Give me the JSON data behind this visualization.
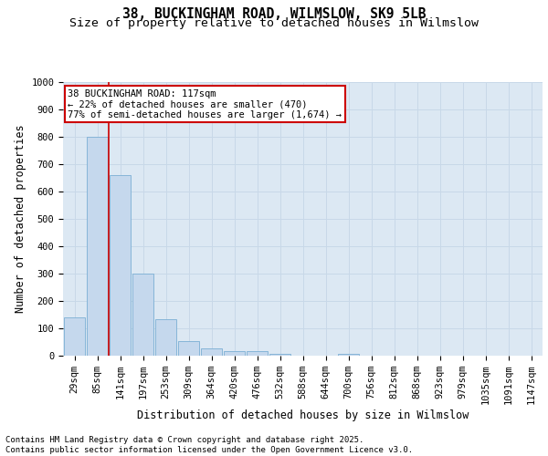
{
  "title1": "38, BUCKINGHAM ROAD, WILMSLOW, SK9 5LB",
  "title2": "Size of property relative to detached houses in Wilmslow",
  "xlabel": "Distribution of detached houses by size in Wilmslow",
  "ylabel": "Number of detached properties",
  "categories": [
    "29sqm",
    "85sqm",
    "141sqm",
    "197sqm",
    "253sqm",
    "309sqm",
    "364sqm",
    "420sqm",
    "476sqm",
    "532sqm",
    "588sqm",
    "644sqm",
    "700sqm",
    "756sqm",
    "812sqm",
    "868sqm",
    "923sqm",
    "979sqm",
    "1035sqm",
    "1091sqm",
    "1147sqm"
  ],
  "bar_heights": [
    140,
    800,
    660,
    300,
    135,
    53,
    27,
    18,
    18,
    8,
    0,
    0,
    8,
    0,
    0,
    0,
    0,
    0,
    0,
    0,
    0
  ],
  "bar_color": "#c5d8ed",
  "bar_edge_color": "#7bafd4",
  "grid_color": "#c8d8e8",
  "background_color": "#dce8f3",
  "annotation_box_text": "38 BUCKINGHAM ROAD: 117sqm\n← 22% of detached houses are smaller (470)\n77% of semi-detached houses are larger (1,674) →",
  "annotation_box_color": "#ffffff",
  "annotation_box_edge_color": "#cc0000",
  "vline_color": "#cc0000",
  "vline_x_index": 1.5,
  "ylim": [
    0,
    1000
  ],
  "yticks": [
    0,
    100,
    200,
    300,
    400,
    500,
    600,
    700,
    800,
    900,
    1000
  ],
  "footer_text": "Contains HM Land Registry data © Crown copyright and database right 2025.\nContains public sector information licensed under the Open Government Licence v3.0.",
  "title_fontsize": 10.5,
  "subtitle_fontsize": 9.5,
  "tick_fontsize": 7.5,
  "label_fontsize": 8.5,
  "footer_fontsize": 6.5,
  "annot_fontsize": 7.5
}
